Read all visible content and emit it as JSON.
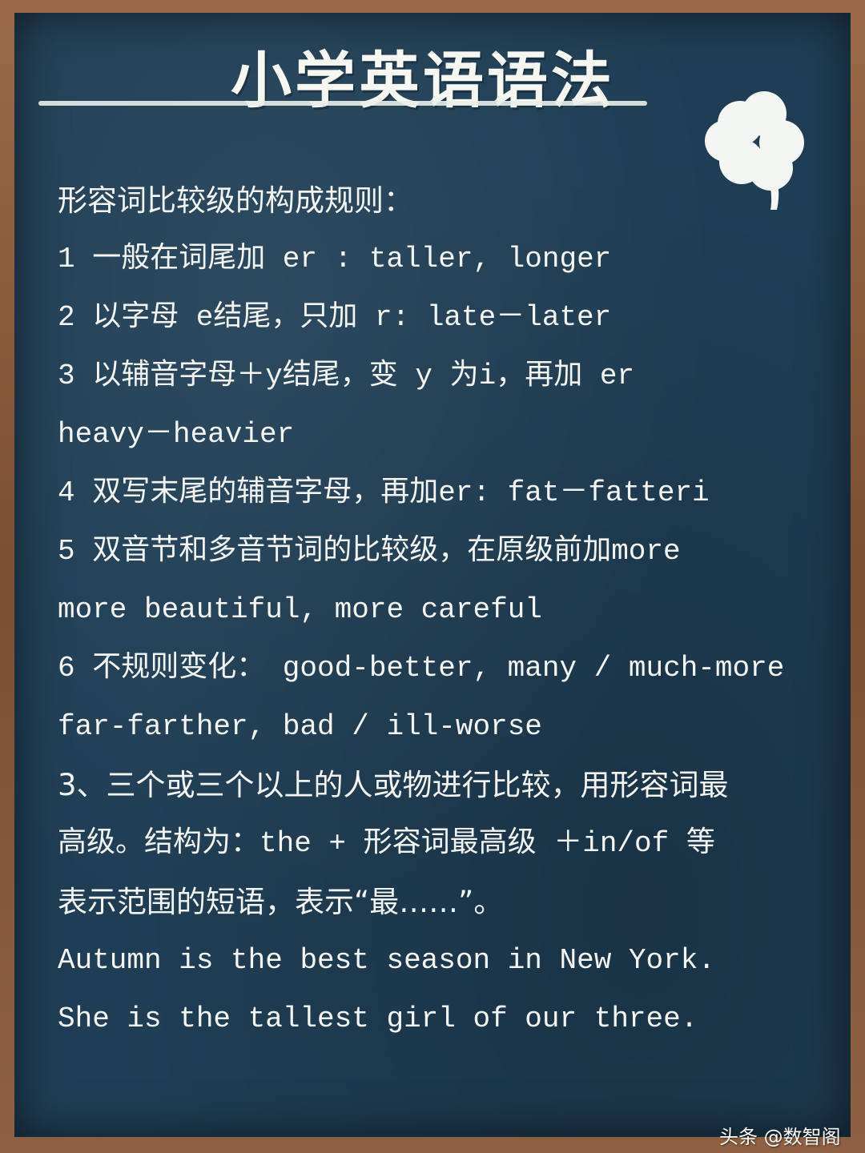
{
  "title": "小学英语语法",
  "lines": [
    "形容词比较级的构成规则：",
    "1 一般在词尾加 er : taller, longer",
    "2 以字母 e结尾，只加 r: late－later",
    "3 以辅音字母＋y结尾，变 y 为i，再加 er",
    "heavy－heavier",
    "4 双写末尾的辅音字母，再加er: fat－fatteri",
    "5 双音节和多音节词的比较级，在原级前加more",
    "more beautiful, more careful",
    "6 不规则变化：  good-better, many / much-more",
    "far-farther, bad / ill-worse",
    "3、三个或三个以上的人或物进行比较，用形容词最",
    "高级。结构为：the + 形容词最高级 ＋in/of 等",
    "表示范围的短语，表示“最……”。",
    "Autumn is the best season in New York.",
    "She is the tallest girl of our three."
  ],
  "watermark": "头条 @数智阁",
  "decor": {
    "icon": "four-leaf-clover-icon",
    "board_color": "#1f3e55",
    "frame_color": "#8a5a3a",
    "chalk_color": "#f4f5f1"
  }
}
